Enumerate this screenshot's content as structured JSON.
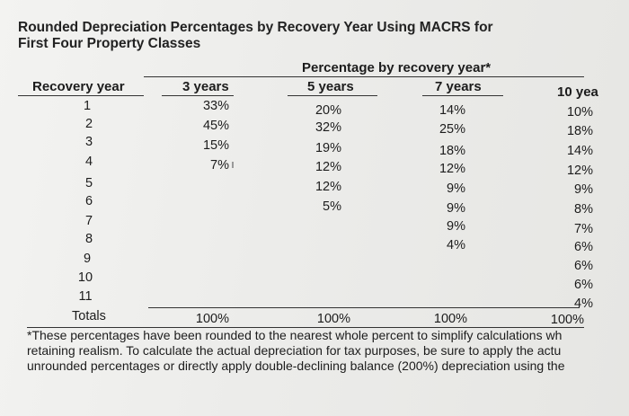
{
  "title_line1": "Rounded Depreciation Percentages by Recovery Year Using MACRS for",
  "title_line2": "First Four Property Classes",
  "span_header": "Percentage by recovery year*",
  "columns": {
    "recovery_year": "Recovery year",
    "c3": "3 years",
    "c5": "5 years",
    "c7": "7 years",
    "c10": "10 yea"
  },
  "rows": [
    {
      "year": "1",
      "c3": "33%",
      "c5": "20%",
      "c7": "14%",
      "c10": "10%"
    },
    {
      "year": "2",
      "c3": "45%",
      "c5": "32%",
      "c7": "25%",
      "c10": "18%"
    },
    {
      "year": "3",
      "c3": "15%",
      "c5": "19%",
      "c7": "18%",
      "c10": "14%"
    },
    {
      "year": "4",
      "c3": "7%",
      "c5": "12%",
      "c7": "12%",
      "c10": "12%"
    },
    {
      "year": "5",
      "c3": "",
      "c5": "12%",
      "c7": "9%",
      "c10": "9%"
    },
    {
      "year": "6",
      "c3": "",
      "c5": "5%",
      "c7": "9%",
      "c10": "8%"
    },
    {
      "year": "7",
      "c3": "",
      "c5": "",
      "c7": "9%",
      "c10": "7%"
    },
    {
      "year": "8",
      "c3": "",
      "c5": "",
      "c7": "4%",
      "c10": "6%"
    },
    {
      "year": "9",
      "c3": "",
      "c5": "",
      "c7": "",
      "c10": "6%"
    },
    {
      "year": "10",
      "c3": "",
      "c5": "",
      "c7": "",
      "c10": "6%"
    },
    {
      "year": "11",
      "c3": "",
      "c5": "",
      "c7": "",
      "c10": "4%"
    }
  ],
  "totals": {
    "label": "Totals",
    "c3": "100%",
    "c5": "100%",
    "c7": "100%",
    "c10": "100%"
  },
  "footnote": [
    "*These percentages have been rounded to the nearest whole percent to simplify calculations wh",
    "retaining realism. To calculate the actual depreciation for tax purposes, be sure to apply the actu",
    "unrounded percentages or directly apply double-declining balance (200%) depreciation using the"
  ]
}
